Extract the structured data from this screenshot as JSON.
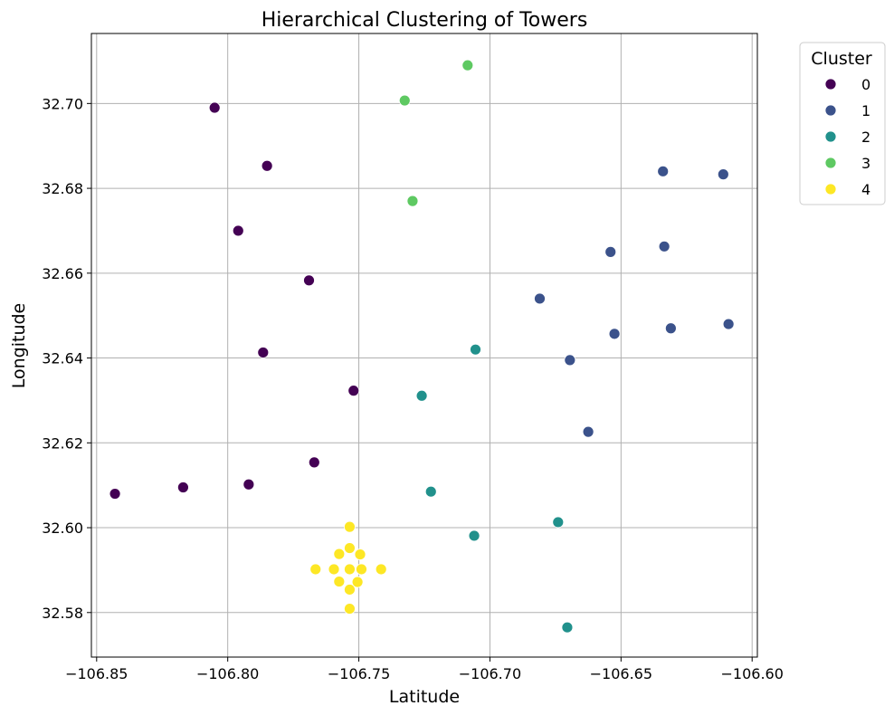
{
  "chart_data": {
    "type": "scatter",
    "title": "Hierarchical Clustering of Towers",
    "xlabel": "Latitude",
    "ylabel": "Longitude",
    "xlim": [
      -106.852,
      -106.598
    ],
    "ylim": [
      32.5695,
      32.7165
    ],
    "xticks": [
      -106.85,
      -106.8,
      -106.75,
      -106.7,
      -106.65,
      -106.6
    ],
    "xtick_labels": [
      "−106.85",
      "−106.80",
      "−106.75",
      "−106.70",
      "−106.65",
      "−106.60"
    ],
    "yticks": [
      32.58,
      32.6,
      32.62,
      32.64,
      32.66,
      32.68,
      32.7
    ],
    "ytick_labels": [
      "32.58",
      "32.60",
      "32.62",
      "32.64",
      "32.66",
      "32.68",
      "32.70"
    ],
    "grid": true,
    "legend": {
      "title": "Cluster",
      "placement": "outside-top-right"
    },
    "series": [
      {
        "name": "0",
        "color": "#440154",
        "points": [
          [
            -106.805,
            32.699
          ],
          [
            -106.785,
            32.6853
          ],
          [
            -106.796,
            32.67
          ],
          [
            -106.769,
            32.6583
          ],
          [
            -106.7865,
            32.6413
          ],
          [
            -106.752,
            32.6323
          ],
          [
            -106.767,
            32.6154
          ],
          [
            -106.792,
            32.6102
          ],
          [
            -106.817,
            32.6095
          ],
          [
            -106.843,
            32.608
          ]
        ]
      },
      {
        "name": "1",
        "color": "#3b528b",
        "points": [
          [
            -106.634,
            32.684
          ],
          [
            -106.611,
            32.6833
          ],
          [
            -106.6335,
            32.6663
          ],
          [
            -106.654,
            32.665
          ],
          [
            -106.681,
            32.654
          ],
          [
            -106.609,
            32.648
          ],
          [
            -106.631,
            32.647
          ],
          [
            -106.6525,
            32.6457
          ],
          [
            -106.6695,
            32.6395
          ],
          [
            -106.6625,
            32.6226
          ]
        ]
      },
      {
        "name": "2",
        "color": "#21918c",
        "points": [
          [
            -106.7055,
            32.642
          ],
          [
            -106.726,
            32.6311
          ],
          [
            -106.7225,
            32.6085
          ],
          [
            -106.674,
            32.6013
          ],
          [
            -106.706,
            32.5981
          ],
          [
            -106.6705,
            32.5765
          ]
        ]
      },
      {
        "name": "3",
        "color": "#5ec962",
        "points": [
          [
            -106.7085,
            32.709
          ],
          [
            -106.7325,
            32.7007
          ],
          [
            -106.7295,
            32.677
          ]
        ]
      },
      {
        "name": "4",
        "color": "#fde725",
        "points": [
          [
            -106.7535,
            32.6002
          ],
          [
            -106.7535,
            32.5952
          ],
          [
            -106.7575,
            32.5938
          ],
          [
            -106.7495,
            32.5937
          ],
          [
            -106.7665,
            32.5902
          ],
          [
            -106.7595,
            32.5902
          ],
          [
            -106.7535,
            32.5902
          ],
          [
            -106.749,
            32.5902
          ],
          [
            -106.7415,
            32.5902
          ],
          [
            -106.7575,
            32.5873
          ],
          [
            -106.7505,
            32.5872
          ],
          [
            -106.7535,
            32.5854
          ],
          [
            -106.7535,
            32.5809
          ]
        ]
      }
    ]
  }
}
